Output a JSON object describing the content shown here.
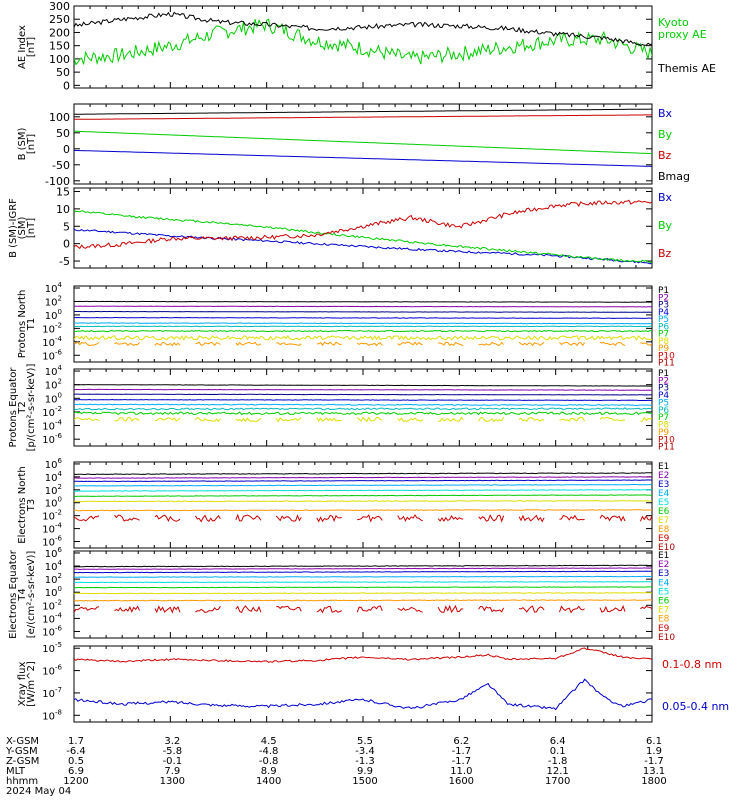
{
  "colors": {
    "black": "#000000",
    "red": "#cc0000",
    "green": "#00cc00",
    "blue": "#0000cc",
    "cyan": "#00aaff",
    "teal": "#00bbbb",
    "aqua": "#00dddd",
    "yellow": "#dddd00",
    "orange": "#ff9900",
    "purple": "#8800aa",
    "navy": "#000088",
    "darkred": "#aa0000"
  },
  "footer": {
    "row_labels": [
      "X-GSM",
      "Y-GSM",
      "Z-GSM",
      "MLT",
      "hhmm"
    ],
    "date": "2024 May 04",
    "columns": [
      {
        "x": "1.7",
        "y": "-6.4",
        "z": "0.5",
        "mlt": "6.9",
        "hhmm": "1200"
      },
      {
        "x": "3.2",
        "y": "-5.8",
        "z": "-0.1",
        "mlt": "7.9",
        "hhmm": "1300"
      },
      {
        "x": "4.5",
        "y": "-4.8",
        "z": "-0.8",
        "mlt": "8.9",
        "hhmm": "1400"
      },
      {
        "x": "5.5",
        "y": "-3.4",
        "z": "-1.3",
        "mlt": "9.9",
        "hhmm": "1500"
      },
      {
        "x": "6.2",
        "y": "-1.7",
        "z": "-1.7",
        "mlt": "11.0",
        "hhmm": "1600"
      },
      {
        "x": "6.4",
        "y": "0.1",
        "z": "-1.8",
        "mlt": "12.1",
        "hhmm": "1700"
      },
      {
        "x": "6.1",
        "y": "1.9",
        "z": "-1.7",
        "mlt": "13.1",
        "hhmm": "1800"
      }
    ]
  },
  "chart_data": [
    {
      "type": "line",
      "ylabel": "AE Index [nT]",
      "ylim": [
        -10,
        300
      ],
      "yticks": [
        "300",
        "250",
        "200",
        "150",
        "100",
        "50",
        "0"
      ],
      "ytick_values": [
        300,
        250,
        200,
        150,
        100,
        50,
        0
      ],
      "x_hours": [
        12,
        12.5,
        13,
        13.5,
        14,
        14.5,
        15,
        15.5,
        16,
        16.5,
        17,
        17.5,
        18
      ],
      "series": [
        {
          "name": "Kyoto proxy AE",
          "color": "#00cc00",
          "values": [
            100,
            115,
            150,
            200,
            230,
            170,
            140,
            100,
            120,
            145,
            170,
            175,
            120
          ],
          "noise": 28,
          "seed": 7
        },
        {
          "name": "Themis AE",
          "color": "#000000",
          "values": [
            225,
            250,
            270,
            240,
            230,
            215,
            220,
            230,
            225,
            215,
            195,
            180,
            150
          ],
          "noise": 9,
          "seed": 3
        }
      ],
      "legend": [
        {
          "text": "Kyoto",
          "color": "#00cc00"
        },
        {
          "text": "proxy AE",
          "color": "#00cc00"
        },
        {
          "text": "Themis AE",
          "color": "#000000"
        }
      ]
    },
    {
      "type": "line",
      "ylabel": "B (SM) [nT]",
      "ylim": [
        -110,
        140
      ],
      "yticks": [
        "100",
        "50",
        "0",
        "-50",
        "-100"
      ],
      "ytick_values": [
        100,
        50,
        0,
        -50,
        -100
      ],
      "x_hours": [
        12,
        18
      ],
      "series": [
        {
          "name": "Bx",
          "color": "#0000cc",
          "values": [
            -5,
            -55
          ],
          "noise": 0,
          "seed": 1
        },
        {
          "name": "By",
          "color": "#00cc00",
          "values": [
            55,
            -15
          ],
          "noise": 0,
          "seed": 1
        },
        {
          "name": "Bz",
          "color": "#cc0000",
          "values": [
            92,
            106
          ],
          "noise": 0,
          "seed": 1
        },
        {
          "name": "Bmag",
          "color": "#000000",
          "values": [
            108,
            124
          ],
          "noise": 0,
          "seed": 1
        }
      ],
      "legend": [
        {
          "text": "Bx",
          "color": "#0000cc"
        },
        {
          "text": "By",
          "color": "#00cc00"
        },
        {
          "text": "Bz",
          "color": "#cc0000"
        },
        {
          "text": "Bmag",
          "color": "#000000"
        }
      ]
    },
    {
      "type": "line",
      "ylabel": "B (SM)-IGRF (SM) [nT]",
      "ylim": [
        -7,
        16
      ],
      "yticks": [
        "15",
        "10",
        "5",
        "0",
        "-5"
      ],
      "ytick_values": [
        15,
        10,
        5,
        0,
        -5
      ],
      "x_hours": [
        12,
        12.5,
        13,
        13.5,
        14,
        14.5,
        15,
        15.5,
        16,
        16.5,
        17,
        17.5,
        18
      ],
      "series": [
        {
          "name": "Bx",
          "color": "#0000cc",
          "values": [
            4,
            3.2,
            2.2,
            1.5,
            0.8,
            0,
            -0.8,
            -1.6,
            -2.3,
            -2.8,
            -3.5,
            -4.5,
            -5.6
          ],
          "noise": 0.3,
          "seed": 11
        },
        {
          "name": "By",
          "color": "#00cc00",
          "values": [
            9.5,
            8,
            7,
            6,
            4.8,
            3.2,
            1.8,
            0.5,
            -0.8,
            -2,
            -3.2,
            -4.5,
            -5.2
          ],
          "noise": 0.3,
          "seed": 12
        },
        {
          "name": "Bz",
          "color": "#cc0000",
          "values": [
            -1,
            -0.2,
            1.5,
            1.5,
            1.8,
            2.5,
            5,
            7.5,
            4.8,
            8.5,
            11,
            11.8,
            12
          ],
          "noise": 0.6,
          "seed": 13
        }
      ],
      "legend": [
        {
          "text": "Bx",
          "color": "#0000cc"
        },
        {
          "text": "By",
          "color": "#00cc00"
        },
        {
          "text": "Bz",
          "color": "#cc0000"
        }
      ]
    },
    {
      "type": "line",
      "ylabel": "Protons North T1",
      "log": true,
      "ylim_log": [
        -7,
        4.3
      ],
      "ytick_exponents": [
        4,
        2,
        0,
        -2,
        -4,
        -6
      ],
      "x_hours": [
        12,
        18
      ],
      "series": [
        {
          "name": "P1",
          "color": "#000000",
          "values": [
            2,
            1.9
          ],
          "noise": 0.02,
          "seed": 21
        },
        {
          "name": "P2",
          "color": "#8800aa",
          "values": [
            1.3,
            1.2
          ],
          "noise": 0.02,
          "seed": 22
        },
        {
          "name": "P3",
          "color": "#000088",
          "values": [
            0.5,
            0.4
          ],
          "noise": 0.02,
          "seed": 23
        },
        {
          "name": "P4",
          "color": "#0000cc",
          "values": [
            -0.4,
            -0.5
          ],
          "noise": 0.03,
          "seed": 24
        },
        {
          "name": "P5",
          "color": "#00aaff",
          "values": [
            -1.2,
            -1.3
          ],
          "noise": 0.03,
          "seed": 25
        },
        {
          "name": "P6",
          "color": "#00bbbb",
          "values": [
            -1.7,
            -1.7
          ],
          "noise": 0.04,
          "seed": 26
        },
        {
          "name": "P7",
          "color": "#00cc00",
          "values": [
            -2.4,
            -2.4
          ],
          "noise": 0.08,
          "seed": 27
        },
        {
          "name": "P8",
          "color": "#dddd00",
          "values": [
            -3.4,
            -3.4
          ],
          "noise": 0.3,
          "seed": 28
        },
        {
          "name": "P9",
          "color": "#ff9900",
          "values": [
            -4.3,
            -4.3
          ],
          "noise": 0.25,
          "seed": 29,
          "gaps": true
        }
      ],
      "legend": [
        {
          "text": "P1",
          "color": "#000000"
        },
        {
          "text": "P2",
          "color": "#8800aa"
        },
        {
          "text": "P3",
          "color": "#000088"
        },
        {
          "text": "P4",
          "color": "#0000cc"
        },
        {
          "text": "P5",
          "color": "#00aaff"
        },
        {
          "text": "P6",
          "color": "#00bbbb"
        },
        {
          "text": "P7",
          "color": "#00cc00"
        },
        {
          "text": "P8",
          "color": "#dddd00"
        },
        {
          "text": "P9",
          "color": "#ff9900"
        },
        {
          "text": "P10",
          "color": "#cc0000"
        },
        {
          "text": "P11",
          "color": "#aa0000"
        }
      ]
    },
    {
      "type": "line",
      "ylabel": "Protons Equator T2 [p/(cm²-s-sr-keV)]",
      "log": true,
      "ylim_log": [
        -7,
        4.3
      ],
      "ytick_exponents": [
        4,
        2,
        0,
        -2,
        -4,
        -6
      ],
      "x_hours": [
        12,
        18
      ],
      "series": [
        {
          "name": "P1",
          "color": "#000000",
          "values": [
            2,
            1.8
          ],
          "noise": 0.02,
          "seed": 31
        },
        {
          "name": "P2",
          "color": "#8800aa",
          "values": [
            1.3,
            1.2
          ],
          "noise": 0.02,
          "seed": 32
        },
        {
          "name": "P3",
          "color": "#000088",
          "values": [
            0.6,
            0.5
          ],
          "noise": 0.02,
          "seed": 33
        },
        {
          "name": "P4",
          "color": "#0000cc",
          "values": [
            -0.2,
            -0.3
          ],
          "noise": 0.03,
          "seed": 34
        },
        {
          "name": "P5",
          "color": "#00aaff",
          "values": [
            -0.9,
            -1.0
          ],
          "noise": 0.06,
          "seed": 35
        },
        {
          "name": "P6",
          "color": "#00bbbb",
          "values": [
            -1.6,
            -1.5
          ],
          "noise": 0.12,
          "seed": 36
        },
        {
          "name": "P7",
          "color": "#00cc00",
          "values": [
            -2.2,
            -2.2
          ],
          "noise": 0.18,
          "seed": 37
        },
        {
          "name": "P8",
          "color": "#dddd00",
          "values": [
            -3.1,
            -3.1
          ],
          "noise": 0.3,
          "seed": 38,
          "gaps": true
        }
      ],
      "legend": [
        {
          "text": "P1",
          "color": "#000000"
        },
        {
          "text": "P2",
          "color": "#8800aa"
        },
        {
          "text": "P3",
          "color": "#000088"
        },
        {
          "text": "P4",
          "color": "#0000cc"
        },
        {
          "text": "P5",
          "color": "#00aaff"
        },
        {
          "text": "P6",
          "color": "#00bbbb"
        },
        {
          "text": "P7",
          "color": "#00cc00"
        },
        {
          "text": "P8",
          "color": "#dddd00"
        },
        {
          "text": "P9",
          "color": "#ff9900"
        },
        {
          "text": "P10",
          "color": "#cc0000"
        },
        {
          "text": "P11",
          "color": "#aa0000"
        }
      ]
    },
    {
      "type": "line",
      "ylabel": "Electrons North T3",
      "log": true,
      "ylim_log": [
        -7,
        6.3
      ],
      "ytick_exponents": [
        6,
        4,
        2,
        0,
        -2,
        -4,
        -6
      ],
      "x_hours": [
        12,
        18
      ],
      "series": [
        {
          "name": "E1",
          "color": "#000000",
          "values": [
            4.4,
            4.6
          ],
          "noise": 0.05,
          "seed": 41
        },
        {
          "name": "E2",
          "color": "#8800aa",
          "values": [
            3.8,
            4.0
          ],
          "noise": 0.03,
          "seed": 42
        },
        {
          "name": "E3",
          "color": "#0000cc",
          "values": [
            3.3,
            3.5
          ],
          "noise": 0.03,
          "seed": 43
        },
        {
          "name": "E4",
          "color": "#00aaff",
          "values": [
            2.6,
            2.8
          ],
          "noise": 0.03,
          "seed": 44
        },
        {
          "name": "E5",
          "color": "#00dddd",
          "values": [
            1.8,
            2.0
          ],
          "noise": 0.03,
          "seed": 45
        },
        {
          "name": "E6",
          "color": "#00cc00",
          "values": [
            1.0,
            1.2
          ],
          "noise": 0.03,
          "seed": 46
        },
        {
          "name": "E7",
          "color": "#dddd00",
          "values": [
            0.2,
            0.3
          ],
          "noise": 0.05,
          "seed": 47
        },
        {
          "name": "E8",
          "color": "#ff9900",
          "values": [
            -1.2,
            -1.1
          ],
          "noise": 0.05,
          "seed": 48
        },
        {
          "name": "E9",
          "color": "#cc0000",
          "values": [
            -2.4,
            -2.4
          ],
          "noise": 0.5,
          "seed": 49,
          "gaps": true
        }
      ],
      "legend": [
        {
          "text": "E1",
          "color": "#000000"
        },
        {
          "text": "E2",
          "color": "#8800aa"
        },
        {
          "text": "E3",
          "color": "#0000cc"
        },
        {
          "text": "E4",
          "color": "#00aaff"
        },
        {
          "text": "E5",
          "color": "#00dddd"
        },
        {
          "text": "E6",
          "color": "#00cc00"
        },
        {
          "text": "E7",
          "color": "#dddd00"
        },
        {
          "text": "E8",
          "color": "#ff9900"
        },
        {
          "text": "E9",
          "color": "#cc0000"
        },
        {
          "text": "E10",
          "color": "#aa0000"
        }
      ]
    },
    {
      "type": "line",
      "ylabel": "Electrons Equator T4 [e/(cm²-s-sr-keV)]",
      "log": true,
      "ylim_log": [
        -7,
        6.3
      ],
      "ytick_exponents": [
        6,
        4,
        2,
        0,
        -2,
        -4,
        -6
      ],
      "x_hours": [
        12,
        18
      ],
      "series": [
        {
          "name": "E1",
          "color": "#000000",
          "values": [
            3.9,
            4.1
          ],
          "noise": 0.04,
          "seed": 51
        },
        {
          "name": "E2",
          "color": "#8800aa",
          "values": [
            3.5,
            3.7
          ],
          "noise": 0.03,
          "seed": 52
        },
        {
          "name": "E3",
          "color": "#0000cc",
          "values": [
            3.0,
            3.2
          ],
          "noise": 0.03,
          "seed": 53
        },
        {
          "name": "E4",
          "color": "#00aaff",
          "values": [
            2.3,
            2.4
          ],
          "noise": 0.03,
          "seed": 54
        },
        {
          "name": "E5",
          "color": "#00dddd",
          "values": [
            1.5,
            1.6
          ],
          "noise": 0.03,
          "seed": 55
        },
        {
          "name": "E6",
          "color": "#00cc00",
          "values": [
            0.7,
            0.8
          ],
          "noise": 0.03,
          "seed": 56
        },
        {
          "name": "E7",
          "color": "#dddd00",
          "values": [
            -0.2,
            -0.1
          ],
          "noise": 0.04,
          "seed": 57
        },
        {
          "name": "E8",
          "color": "#ff9900",
          "values": [
            -1.3,
            -1.2
          ],
          "noise": 0.05,
          "seed": 58
        },
        {
          "name": "E9",
          "color": "#cc0000",
          "values": [
            -2.6,
            -2.6
          ],
          "noise": 0.5,
          "seed": 59,
          "gaps": true
        }
      ],
      "legend": [
        {
          "text": "E1",
          "color": "#000000"
        },
        {
          "text": "E2",
          "color": "#8800aa"
        },
        {
          "text": "E3",
          "color": "#0000cc"
        },
        {
          "text": "E4",
          "color": "#00aaff"
        },
        {
          "text": "E5",
          "color": "#00dddd"
        },
        {
          "text": "E6",
          "color": "#00cc00"
        },
        {
          "text": "E7",
          "color": "#dddd00"
        },
        {
          "text": "E8",
          "color": "#ff9900"
        },
        {
          "text": "E9",
          "color": "#cc0000"
        },
        {
          "text": "E10",
          "color": "#aa0000"
        }
      ]
    },
    {
      "type": "line",
      "ylabel": "Xray flux [W/m^2]",
      "log": true,
      "ylim_log": [
        -8.3,
        -4.9
      ],
      "ytick_exponents": [
        -5,
        -6,
        -7,
        -8
      ],
      "x_hours": [
        12,
        12.5,
        13,
        13.5,
        14,
        14.5,
        15,
        15.5,
        16,
        16.3,
        16.5,
        17,
        17.3,
        17.5,
        17.7,
        18
      ],
      "series": [
        {
          "name": "0.1-0.8 nm",
          "color": "#cc0000",
          "values": [
            -5.5,
            -5.6,
            -5.5,
            -5.55,
            -5.6,
            -5.55,
            -5.4,
            -5.5,
            -5.4,
            -5.3,
            -5.5,
            -5.45,
            -5.0,
            -5.2,
            -5.4,
            -5.5
          ],
          "noise": 0.04,
          "seed": 61
        },
        {
          "name": "0.05-0.4 nm",
          "color": "#0000cc",
          "values": [
            -7.3,
            -7.5,
            -7.4,
            -7.55,
            -7.6,
            -7.5,
            -7.3,
            -7.7,
            -7.3,
            -6.6,
            -7.5,
            -7.7,
            -6.4,
            -7.2,
            -7.6,
            -7.3
          ],
          "noise": 0.06,
          "seed": 62
        }
      ],
      "legend": [
        {
          "text": "0.1-0.8 nm",
          "color": "#cc0000"
        },
        {
          "text": "0.05-0.4 nm",
          "color": "#0000cc"
        }
      ]
    }
  ]
}
